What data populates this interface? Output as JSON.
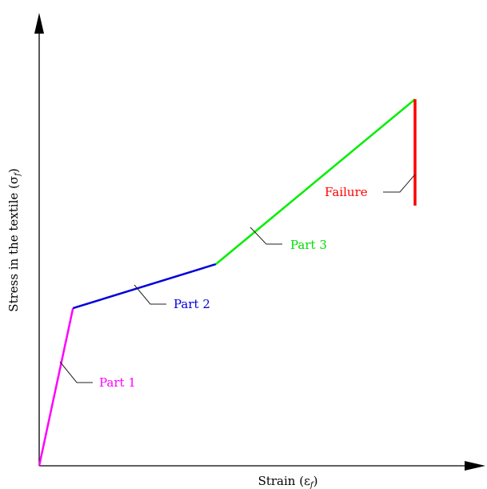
{
  "chart_data": {
    "type": "line",
    "xlabel": "Strain (ε",
    "xlabel_sub": "f",
    "ylabel": "Stress in the textile (σ",
    "ylabel_sub": "f",
    "grid": false,
    "segments": [
      {
        "name": "Part 1",
        "color": "#ff00ff",
        "points": [
          [
            0,
            0
          ],
          [
            0.09,
            0.43
          ]
        ]
      },
      {
        "name": "Part 2",
        "color": "#0000dd",
        "points": [
          [
            0.09,
            0.43
          ],
          [
            0.47,
            0.55
          ]
        ]
      },
      {
        "name": "Part 3",
        "color": "#00ee00",
        "points": [
          [
            0.47,
            0.55
          ],
          [
            1.0,
            1.0
          ]
        ]
      },
      {
        "name": "Failure",
        "color": "#ff0000",
        "points": [
          [
            1.0,
            1.0
          ],
          [
            1.0,
            0.71
          ]
        ]
      }
    ]
  },
  "labels": {
    "part1": "Part 1",
    "part2": "Part 2",
    "part3": "Part 3",
    "failure": "Failure"
  }
}
